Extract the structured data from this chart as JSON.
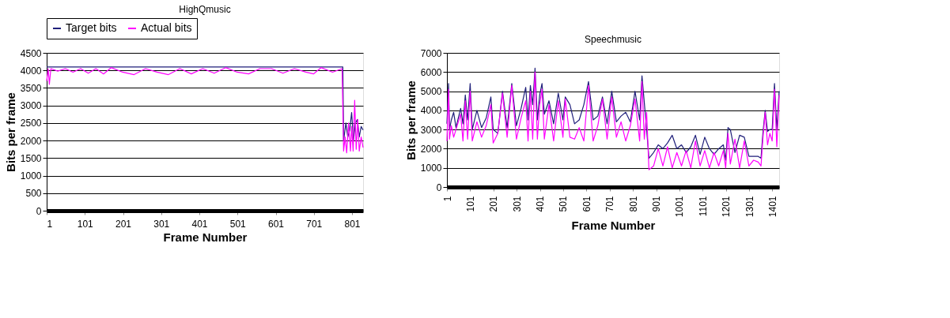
{
  "chart_data": [
    {
      "type": "line",
      "title": "HighQmusic",
      "xlabel": "Frame Number",
      "ylabel": "Bits per frame",
      "xlim": [
        1,
        830
      ],
      "xticks": [
        1,
        101,
        201,
        301,
        401,
        501,
        601,
        701,
        801
      ],
      "ylim": [
        0,
        4500
      ],
      "yticks": [
        0,
        500,
        1000,
        1500,
        2000,
        2500,
        3000,
        3500,
        4000,
        4500
      ],
      "grid": "y",
      "legend": "top",
      "series": [
        {
          "name": "Target bits",
          "color": "#1f1f7a",
          "x": [
            1,
            777,
            779,
            785,
            790,
            795,
            800,
            805,
            810,
            815,
            820,
            825,
            830
          ],
          "values": [
            4100,
            4100,
            2000,
            2500,
            2100,
            2300,
            2800,
            2000,
            2500,
            2600,
            2100,
            2400,
            2300
          ]
        },
        {
          "name": "Actual bits",
          "color": "#ff00ff",
          "x": [
            1,
            5,
            8,
            12,
            30,
            50,
            70,
            90,
            110,
            130,
            150,
            170,
            200,
            230,
            260,
            290,
            320,
            350,
            380,
            410,
            440,
            470,
            500,
            530,
            560,
            590,
            620,
            650,
            680,
            700,
            720,
            750,
            775,
            779,
            783,
            787,
            792,
            797,
            800,
            804,
            808,
            812,
            816,
            820,
            825,
            830
          ],
          "values": [
            3700,
            4050,
            3600,
            4050,
            3980,
            4050,
            3950,
            4050,
            3920,
            4050,
            3900,
            4080,
            3950,
            3880,
            4050,
            3950,
            3880,
            4050,
            3900,
            4050,
            3920,
            4080,
            3950,
            3900,
            4050,
            4050,
            3920,
            4050,
            3950,
            3900,
            4080,
            3950,
            4050,
            1700,
            2100,
            1650,
            2500,
            1700,
            2400,
            1700,
            3150,
            1750,
            2600,
            1700,
            2100,
            1800
          ]
        }
      ]
    },
    {
      "type": "line",
      "title": "Speechmusic",
      "xlabel": "Frame Number",
      "ylabel": "Bits per frame",
      "xlim": [
        1,
        1430
      ],
      "xticks": [
        1,
        101,
        201,
        301,
        401,
        501,
        601,
        701,
        801,
        901,
        1001,
        1101,
        1201,
        1301,
        1401
      ],
      "ylim": [
        0,
        7000
      ],
      "yticks": [
        0,
        1000,
        2000,
        3000,
        4000,
        5000,
        6000,
        7000
      ],
      "grid": "y",
      "series": [
        {
          "color": "#1f1f7a",
          "x": [
            1,
            8,
            12,
            20,
            30,
            40,
            60,
            70,
            80,
            90,
            101,
            110,
            130,
            150,
            170,
            190,
            200,
            220,
            240,
            260,
            280,
            300,
            320,
            340,
            350,
            360,
            370,
            380,
            390,
            400,
            410,
            420,
            440,
            460,
            480,
            500,
            510,
            530,
            550,
            570,
            590,
            610,
            630,
            650,
            670,
            690,
            710,
            730,
            750,
            770,
            790,
            810,
            830,
            840,
            850,
            860,
            870,
            890,
            910,
            930,
            950,
            970,
            990,
            1010,
            1030,
            1050,
            1070,
            1090,
            1110,
            1130,
            1150,
            1170,
            1190,
            1200,
            1210,
            1220,
            1240,
            1260,
            1280,
            1300,
            1320,
            1340,
            1352,
            1360,
            1370,
            1380,
            1390,
            1400,
            1410,
            1420,
            1430
          ],
          "values": [
            3300,
            5400,
            3000,
            3500,
            3900,
            3100,
            4100,
            3300,
            4800,
            3500,
            5400,
            3000,
            4000,
            3100,
            3600,
            4700,
            3000,
            2800,
            5000,
            3100,
            5400,
            3200,
            4100,
            5200,
            3500,
            5300,
            4300,
            6200,
            3500,
            4800,
            5400,
            3800,
            4500,
            3300,
            4900,
            3500,
            4700,
            4300,
            3300,
            3500,
            4300,
            5500,
            3500,
            3700,
            4700,
            3300,
            5000,
            3400,
            3700,
            3900,
            3400,
            5000,
            3500,
            5800,
            4400,
            3000,
            1500,
            1800,
            2200,
            2000,
            2300,
            2700,
            2000,
            2200,
            1800,
            2100,
            2700,
            1700,
            2600,
            2000,
            1700,
            2000,
            2200,
            1400,
            3100,
            3000,
            1800,
            2700,
            2600,
            1600,
            1600,
            1600,
            1500,
            2800,
            4000,
            2900,
            3000,
            3000,
            5400,
            3000,
            5000
          ]
        },
        {
          "color": "#ff00ff",
          "x": [
            1,
            8,
            12,
            20,
            30,
            60,
            70,
            80,
            90,
            101,
            110,
            130,
            150,
            170,
            190,
            200,
            220,
            240,
            260,
            280,
            300,
            320,
            340,
            350,
            360,
            370,
            380,
            390,
            400,
            410,
            420,
            440,
            460,
            480,
            500,
            510,
            530,
            550,
            570,
            590,
            610,
            630,
            650,
            670,
            690,
            710,
            730,
            750,
            770,
            790,
            810,
            830,
            840,
            850,
            860,
            870,
            890,
            910,
            930,
            950,
            970,
            990,
            1010,
            1030,
            1050,
            1070,
            1090,
            1110,
            1130,
            1150,
            1170,
            1190,
            1200,
            1210,
            1220,
            1240,
            1260,
            1280,
            1300,
            1320,
            1340,
            1352,
            1360,
            1370,
            1380,
            1390,
            1400,
            1410,
            1420,
            1430
          ],
          "values": [
            2400,
            5100,
            2500,
            3200,
            2600,
            3800,
            2400,
            4500,
            2500,
            5000,
            2400,
            3400,
            2600,
            3200,
            4300,
            2300,
            2800,
            4900,
            2600,
            5300,
            2500,
            3600,
            4500,
            2400,
            5000,
            2500,
            6000,
            2500,
            4300,
            5100,
            2500,
            4300,
            2400,
            4500,
            2600,
            4600,
            2600,
            2500,
            3100,
            2400,
            5300,
            2400,
            3200,
            4600,
            2500,
            4700,
            2600,
            3400,
            2400,
            3200,
            4600,
            2400,
            5500,
            2500,
            3900,
            900,
            1100,
            2000,
            1100,
            2100,
            1000,
            1800,
            1100,
            1900,
            1000,
            2400,
            1100,
            1900,
            1000,
            1800,
            1100,
            1900,
            1000,
            2800,
            1200,
            2500,
            1000,
            2400,
            1100,
            1400,
            1300,
            1100,
            2500,
            3900,
            2200,
            2800,
            2400,
            5100,
            2100,
            4800
          ]
        }
      ]
    }
  ]
}
